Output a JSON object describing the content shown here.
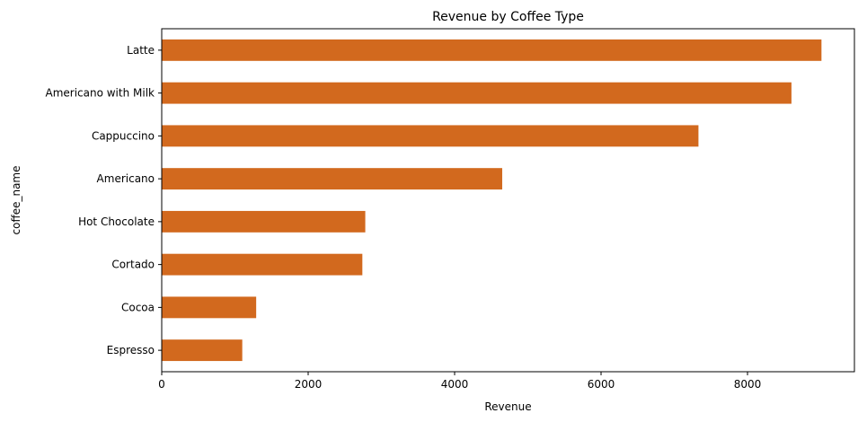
{
  "chart_data": {
    "type": "bar",
    "orientation": "horizontal",
    "title": "Revenue by Coffee Type",
    "xlabel": "Revenue",
    "ylabel": "coffee_name",
    "categories": [
      "Latte",
      "Americano with Milk",
      "Cappuccino",
      "Americano",
      "Hot Chocolate",
      "Cortado",
      "Cocoa",
      "Espresso"
    ],
    "values": [
      9010,
      8600,
      7330,
      4650,
      2780,
      2740,
      1290,
      1100
    ],
    "xlim": [
      0,
      9460
    ],
    "xticks": [
      0,
      2000,
      4000,
      6000,
      8000
    ],
    "grid": false,
    "bar_color": "#D2691E"
  }
}
